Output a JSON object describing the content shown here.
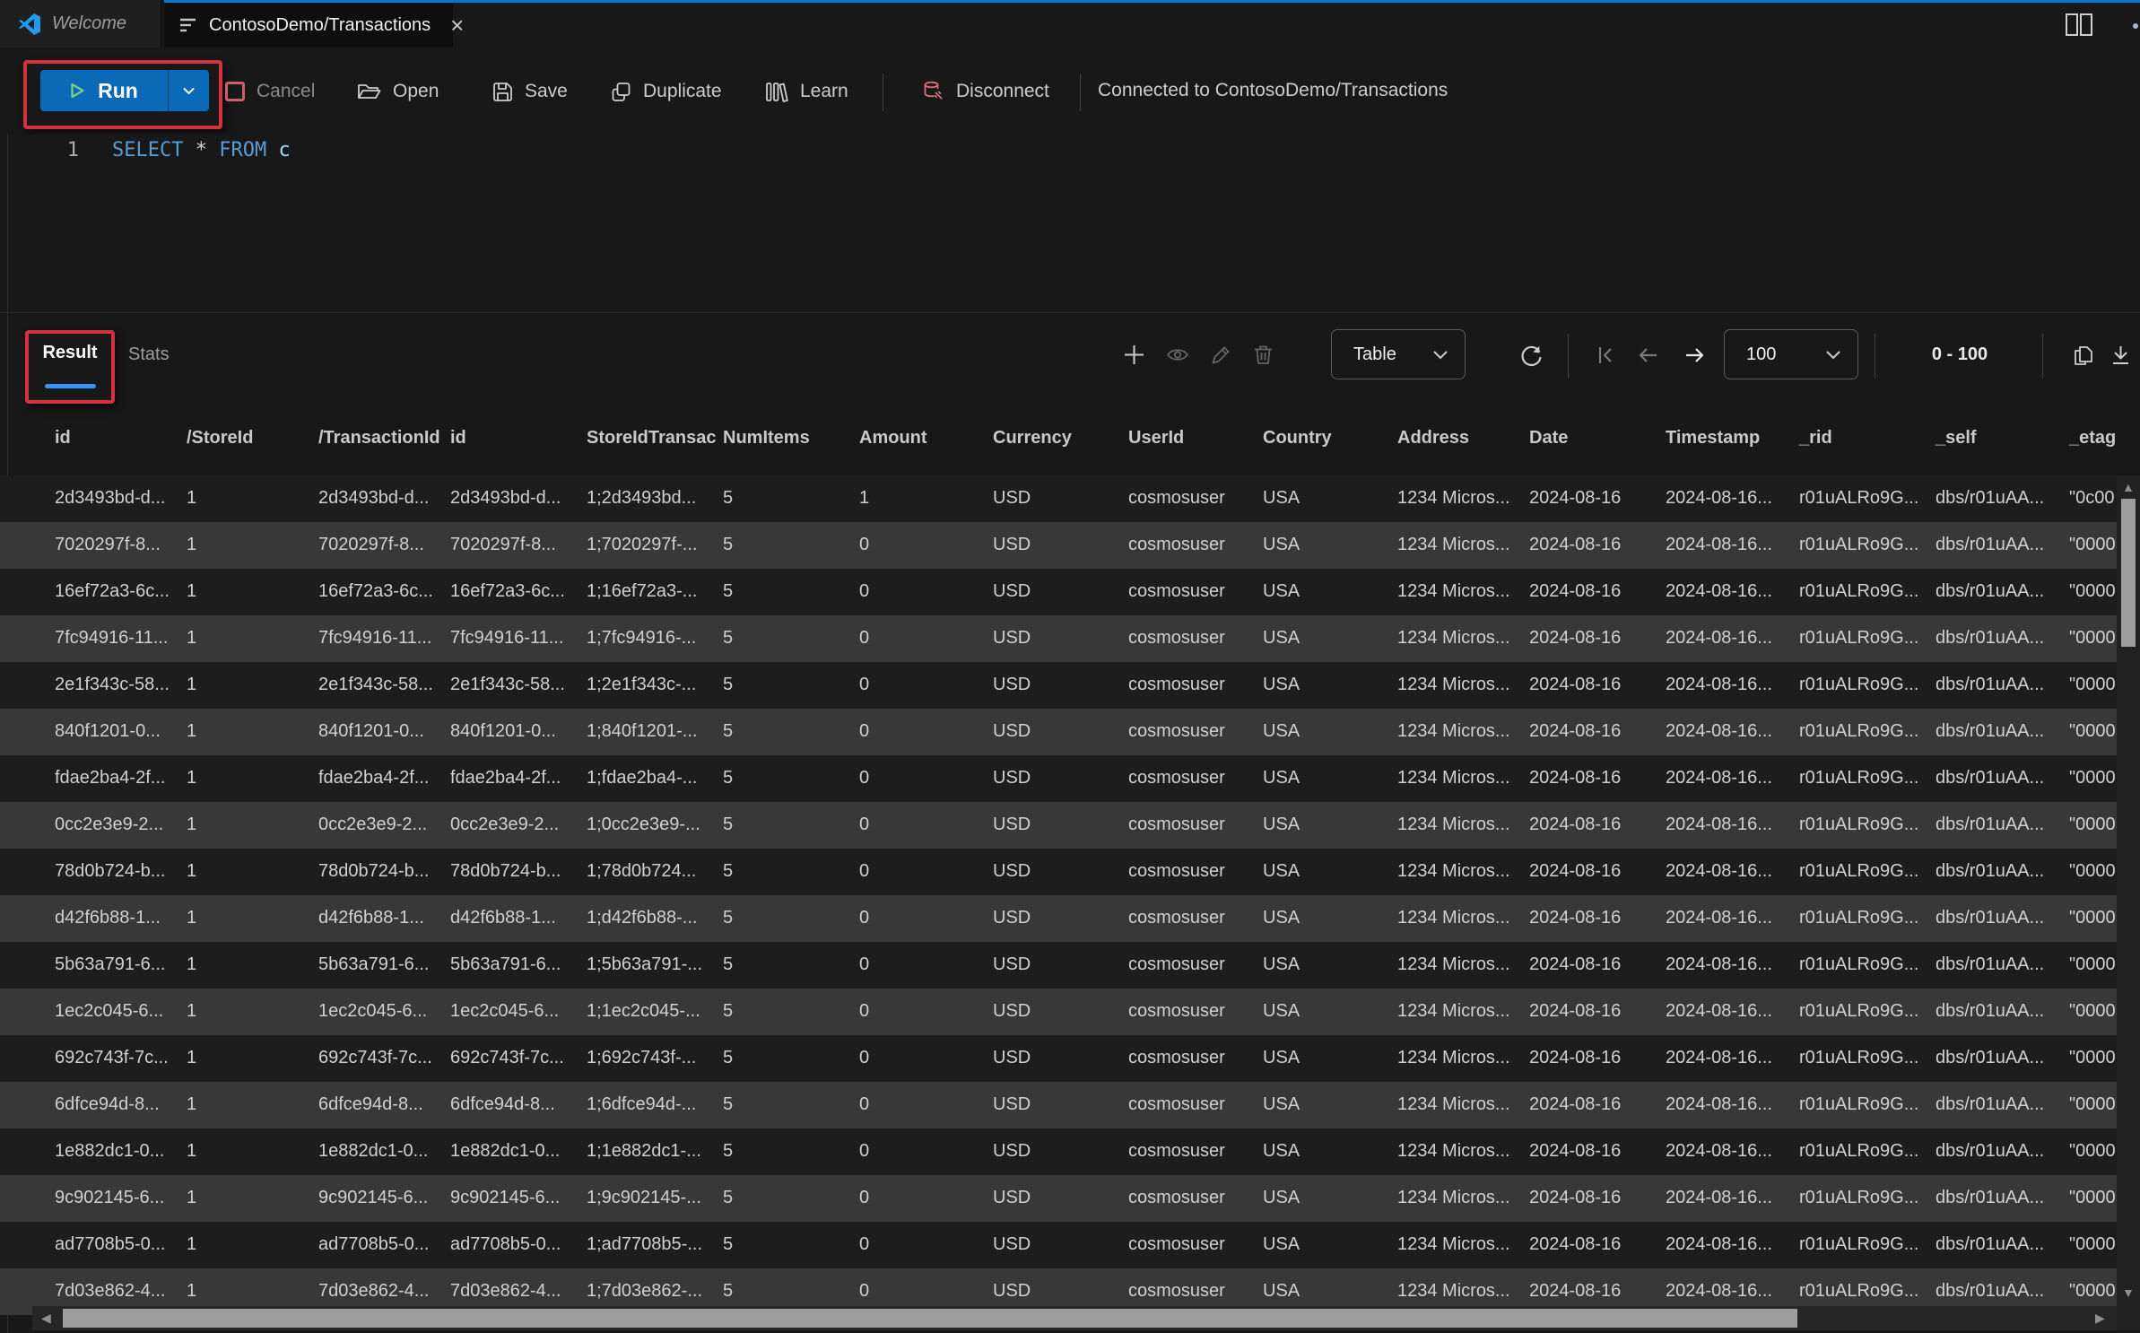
{
  "window": {
    "tabs": [
      {
        "label": "Welcome"
      },
      {
        "label": "ContosoDemo/Transactions"
      }
    ],
    "close_glyph": "×"
  },
  "toolbar": {
    "run_label": "Run",
    "cancel_label": "Cancel",
    "open_label": "Open",
    "save_label": "Save",
    "duplicate_label": "Duplicate",
    "learn_label": "Learn",
    "disconnect_label": "Disconnect",
    "connection_status": "Connected to ContosoDemo/Transactions"
  },
  "editor": {
    "line_number": "1",
    "keyword_select": "SELECT",
    "operator_star": "*",
    "keyword_from": "FROM",
    "identifier": "c"
  },
  "results": {
    "tab_result": "Result",
    "tab_stats": "Stats",
    "view_mode": "Table",
    "page_size": "100",
    "range_label": "0 - 100"
  },
  "icons": {
    "run": "play-triangle",
    "cancel": "stop-square",
    "open": "folder-open",
    "save": "floppy-disk",
    "duplicate": "copy-pages",
    "learn": "library-books",
    "disconnect": "database-plug",
    "result_toolbar": [
      "add",
      "eye",
      "pencil",
      "trash",
      "refresh",
      "first-page",
      "arrow-left",
      "arrow-right",
      "copy",
      "download"
    ],
    "tab_bar": [
      "vscode-logo",
      "query-list",
      "close",
      "split-editor"
    ]
  },
  "colors": {
    "accent_blue": "#0078d4",
    "run_button_blue": "#0b6ab8",
    "annotation_red": "#d2333f",
    "result_underline_blue": "#3794ff",
    "keyword_blue": "#569cd6",
    "identifier_blue": "#9cdcfe",
    "cancel_icon_red": "#c9606c",
    "disconnect_icon_red": "#d9707a",
    "row_dark": "#1d1d1d",
    "row_alt": "#383838",
    "background": "#181818"
  },
  "table": {
    "columns": [
      "id",
      "/StoreId",
      "/TransactionId",
      "id",
      "StoreIdTransac",
      "NumItems",
      "Amount",
      "Currency",
      "UserId",
      "Country",
      "Address",
      "Date",
      "Timestamp",
      "_rid",
      "_self",
      "_etag"
    ],
    "rows": [
      [
        "2d3493bd-d...",
        "1",
        "2d3493bd-d...",
        "2d3493bd-d...",
        "1;2d3493bd...",
        "5",
        "1",
        "USD",
        "cosmosuser",
        "USA",
        "1234 Micros...",
        "2024-08-16",
        "2024-08-16...",
        "r01uALRo9G...",
        "dbs/r01uAA...",
        "\"0c00"
      ],
      [
        "7020297f-8...",
        "1",
        "7020297f-8...",
        "7020297f-8...",
        "1;7020297f-...",
        "5",
        "0",
        "USD",
        "cosmosuser",
        "USA",
        "1234 Micros...",
        "2024-08-16",
        "2024-08-16...",
        "r01uALRo9G...",
        "dbs/r01uAA...",
        "\"0000"
      ],
      [
        "16ef72a3-6c...",
        "1",
        "16ef72a3-6c...",
        "16ef72a3-6c...",
        "1;16ef72a3-...",
        "5",
        "0",
        "USD",
        "cosmosuser",
        "USA",
        "1234 Micros...",
        "2024-08-16",
        "2024-08-16...",
        "r01uALRo9G...",
        "dbs/r01uAA...",
        "\"0000"
      ],
      [
        "7fc94916-11...",
        "1",
        "7fc94916-11...",
        "7fc94916-11...",
        "1;7fc94916-...",
        "5",
        "0",
        "USD",
        "cosmosuser",
        "USA",
        "1234 Micros...",
        "2024-08-16",
        "2024-08-16...",
        "r01uALRo9G...",
        "dbs/r01uAA...",
        "\"0000"
      ],
      [
        "2e1f343c-58...",
        "1",
        "2e1f343c-58...",
        "2e1f343c-58...",
        "1;2e1f343c-...",
        "5",
        "0",
        "USD",
        "cosmosuser",
        "USA",
        "1234 Micros...",
        "2024-08-16",
        "2024-08-16...",
        "r01uALRo9G...",
        "dbs/r01uAA...",
        "\"0000"
      ],
      [
        "840f1201-0...",
        "1",
        "840f1201-0...",
        "840f1201-0...",
        "1;840f1201-...",
        "5",
        "0",
        "USD",
        "cosmosuser",
        "USA",
        "1234 Micros...",
        "2024-08-16",
        "2024-08-16...",
        "r01uALRo9G...",
        "dbs/r01uAA...",
        "\"0000"
      ],
      [
        "fdae2ba4-2f...",
        "1",
        "fdae2ba4-2f...",
        "fdae2ba4-2f...",
        "1;fdae2ba4-...",
        "5",
        "0",
        "USD",
        "cosmosuser",
        "USA",
        "1234 Micros...",
        "2024-08-16",
        "2024-08-16...",
        "r01uALRo9G...",
        "dbs/r01uAA...",
        "\"0000"
      ],
      [
        "0cc2e3e9-2...",
        "1",
        "0cc2e3e9-2...",
        "0cc2e3e9-2...",
        "1;0cc2e3e9-...",
        "5",
        "0",
        "USD",
        "cosmosuser",
        "USA",
        "1234 Micros...",
        "2024-08-16",
        "2024-08-16...",
        "r01uALRo9G...",
        "dbs/r01uAA...",
        "\"0000"
      ],
      [
        "78d0b724-b...",
        "1",
        "78d0b724-b...",
        "78d0b724-b...",
        "1;78d0b724...",
        "5",
        "0",
        "USD",
        "cosmosuser",
        "USA",
        "1234 Micros...",
        "2024-08-16",
        "2024-08-16...",
        "r01uALRo9G...",
        "dbs/r01uAA...",
        "\"0000"
      ],
      [
        "d42f6b88-1...",
        "1",
        "d42f6b88-1...",
        "d42f6b88-1...",
        "1;d42f6b88-...",
        "5",
        "0",
        "USD",
        "cosmosuser",
        "USA",
        "1234 Micros...",
        "2024-08-16",
        "2024-08-16...",
        "r01uALRo9G...",
        "dbs/r01uAA...",
        "\"0000"
      ],
      [
        "5b63a791-6...",
        "1",
        "5b63a791-6...",
        "5b63a791-6...",
        "1;5b63a791-...",
        "5",
        "0",
        "USD",
        "cosmosuser",
        "USA",
        "1234 Micros...",
        "2024-08-16",
        "2024-08-16...",
        "r01uALRo9G...",
        "dbs/r01uAA...",
        "\"0000"
      ],
      [
        "1ec2c045-6...",
        "1",
        "1ec2c045-6...",
        "1ec2c045-6...",
        "1;1ec2c045-...",
        "5",
        "0",
        "USD",
        "cosmosuser",
        "USA",
        "1234 Micros...",
        "2024-08-16",
        "2024-08-16...",
        "r01uALRo9G...",
        "dbs/r01uAA...",
        "\"0000"
      ],
      [
        "692c743f-7c...",
        "1",
        "692c743f-7c...",
        "692c743f-7c...",
        "1;692c743f-...",
        "5",
        "0",
        "USD",
        "cosmosuser",
        "USA",
        "1234 Micros...",
        "2024-08-16",
        "2024-08-16...",
        "r01uALRo9G...",
        "dbs/r01uAA...",
        "\"0000"
      ],
      [
        "6dfce94d-8...",
        "1",
        "6dfce94d-8...",
        "6dfce94d-8...",
        "1;6dfce94d-...",
        "5",
        "0",
        "USD",
        "cosmosuser",
        "USA",
        "1234 Micros...",
        "2024-08-16",
        "2024-08-16...",
        "r01uALRo9G...",
        "dbs/r01uAA...",
        "\"0000"
      ],
      [
        "1e882dc1-0...",
        "1",
        "1e882dc1-0...",
        "1e882dc1-0...",
        "1;1e882dc1-...",
        "5",
        "0",
        "USD",
        "cosmosuser",
        "USA",
        "1234 Micros...",
        "2024-08-16",
        "2024-08-16...",
        "r01uALRo9G...",
        "dbs/r01uAA...",
        "\"0000"
      ],
      [
        "9c902145-6...",
        "1",
        "9c902145-6...",
        "9c902145-6...",
        "1;9c902145-...",
        "5",
        "0",
        "USD",
        "cosmosuser",
        "USA",
        "1234 Micros...",
        "2024-08-16",
        "2024-08-16...",
        "r01uALRo9G...",
        "dbs/r01uAA...",
        "\"0000"
      ],
      [
        "ad7708b5-0...",
        "1",
        "ad7708b5-0...",
        "ad7708b5-0...",
        "1;ad7708b5-...",
        "5",
        "0",
        "USD",
        "cosmosuser",
        "USA",
        "1234 Micros...",
        "2024-08-16",
        "2024-08-16...",
        "r01uALRo9G...",
        "dbs/r01uAA...",
        "\"0000"
      ],
      [
        "7d03e862-4...",
        "1",
        "7d03e862-4...",
        "7d03e862-4...",
        "1;7d03e862-...",
        "5",
        "0",
        "USD",
        "cosmosuser",
        "USA",
        "1234 Micros...",
        "2024-08-16",
        "2024-08-16...",
        "r01uALRo9G...",
        "dbs/r01uAA...",
        "\"0000"
      ]
    ]
  }
}
